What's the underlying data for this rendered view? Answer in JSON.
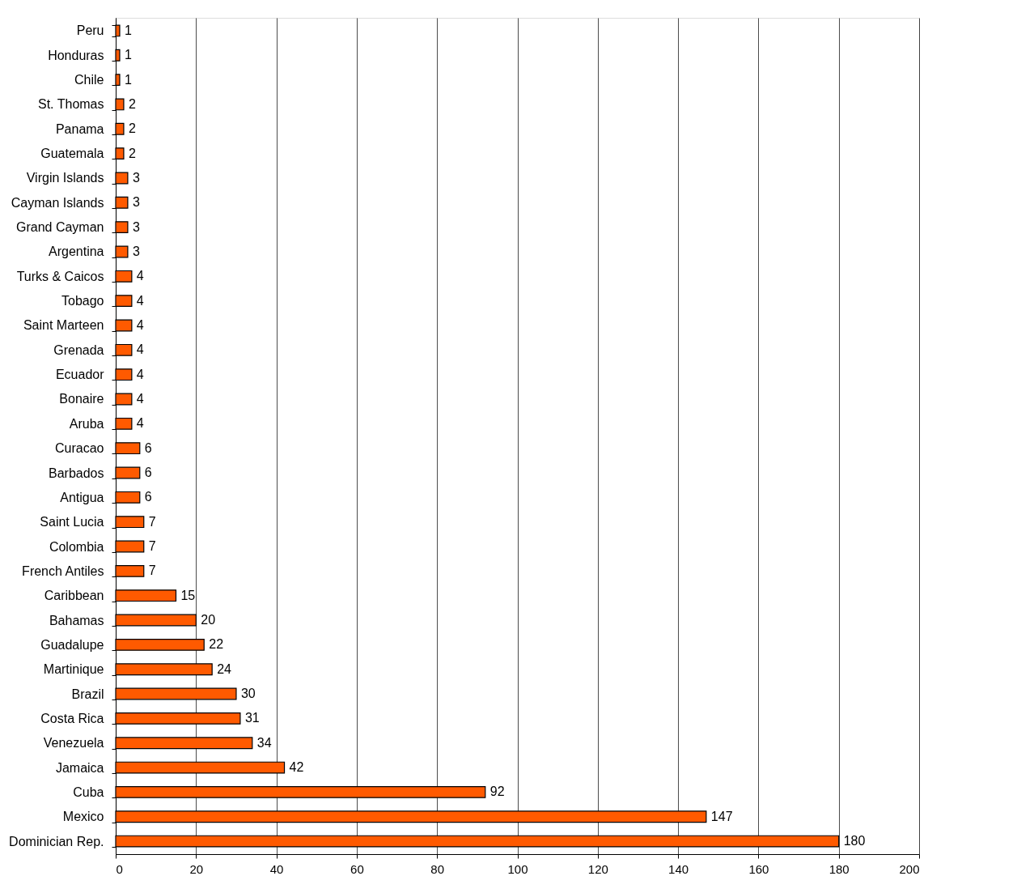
{
  "chart_data": {
    "type": "bar",
    "orientation": "horizontal",
    "categories": [
      "Peru",
      "Honduras",
      "Chile",
      "St. Thomas",
      "Panama",
      "Guatemala",
      "Virgin Islands",
      "Cayman Islands",
      "Grand Cayman",
      "Argentina",
      "Turks & Caicos",
      "Tobago",
      "Saint Marteen",
      "Grenada",
      "Ecuador",
      "Bonaire",
      "Aruba",
      "Curacao",
      "Barbados",
      "Antigua",
      "Saint Lucia",
      "Colombia",
      "French Antiles",
      "Caribbean",
      "Bahamas",
      "Guadalupe",
      "Martinique",
      "Brazil",
      "Costa Rica",
      "Venezuela",
      "Jamaica",
      "Cuba",
      "Mexico",
      "Dominician Rep."
    ],
    "values": [
      1,
      1,
      1,
      2,
      2,
      2,
      3,
      3,
      3,
      3,
      4,
      4,
      4,
      4,
      4,
      4,
      4,
      6,
      6,
      6,
      7,
      7,
      7,
      15,
      20,
      22,
      24,
      30,
      31,
      34,
      42,
      92,
      147,
      180
    ],
    "color": "#ff5a00",
    "xlim": [
      0,
      200
    ],
    "xticks": [
      0,
      20,
      40,
      60,
      80,
      100,
      120,
      140,
      160,
      180,
      200
    ],
    "grid": "x",
    "data_labels": true
  }
}
